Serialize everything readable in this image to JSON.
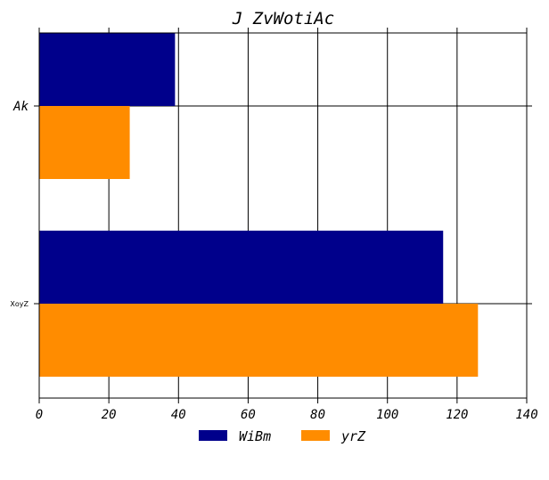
{
  "chart_data": {
    "type": "bar",
    "orientation": "horizontal",
    "title": "J ZvWotiAc",
    "categories": [
      "Ak",
      "XoyZ"
    ],
    "series": [
      {
        "name": "WiBm",
        "values": [
          39,
          116
        ],
        "color": "#00008b"
      },
      {
        "name": "yrZ",
        "values": [
          26,
          126
        ],
        "color": "#ff8c00"
      }
    ],
    "xlim": [
      0,
      140
    ],
    "xticks": [
      0,
      20,
      40,
      60,
      80,
      100,
      120,
      140
    ],
    "grid": true,
    "legend_position": "bottom-center"
  }
}
